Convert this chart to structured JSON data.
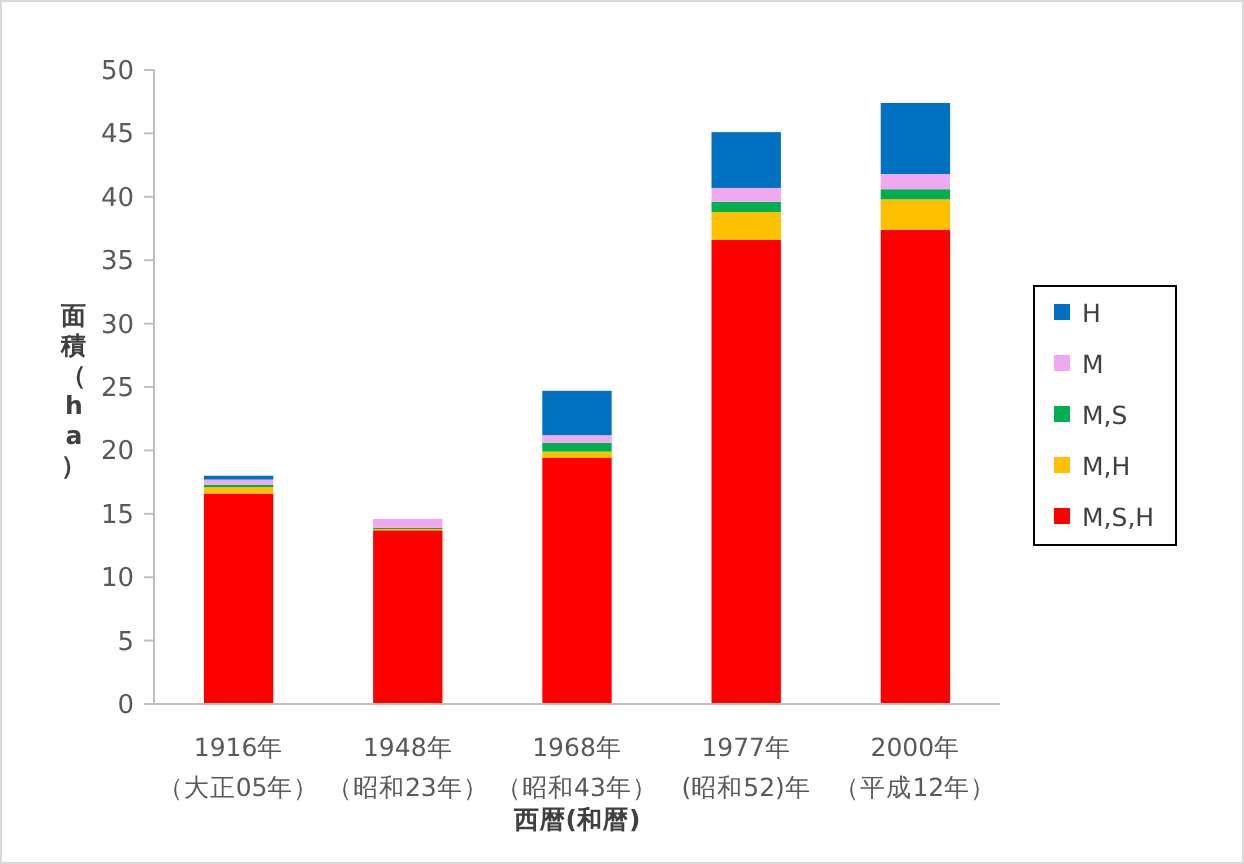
{
  "chart_data": {
    "type": "bar",
    "stacked": true,
    "xlabel": "西暦(和暦)",
    "ylabel": "面積（ha）",
    "categories": [
      "1916年（大正05年）",
      "1948年（昭和23年）",
      "1968年（昭和43年）",
      "1977年(昭和52)年",
      "2000年（平成12年）"
    ],
    "series": [
      {
        "name": "M,S,H",
        "color": "#ff0000",
        "values": [
          16.6,
          13.7,
          19.4,
          36.6,
          37.4
        ]
      },
      {
        "name": "M,H",
        "color": "#ffc000",
        "values": [
          0.5,
          0.1,
          0.5,
          2.2,
          2.4
        ]
      },
      {
        "name": "M,S",
        "color": "#00b050",
        "values": [
          0.2,
          0.1,
          0.7,
          0.8,
          0.8
        ]
      },
      {
        "name": "M",
        "color": "#f0a8f0",
        "values": [
          0.4,
          0.7,
          0.6,
          1.1,
          1.2
        ]
      },
      {
        "name": "H",
        "color": "#0070c0",
        "values": [
          0.3,
          0,
          3.5,
          4.4,
          5.6
        ]
      }
    ],
    "ylim": [
      0,
      50
    ],
    "yticks": [
      0,
      5,
      10,
      15,
      20,
      25,
      30,
      35,
      40,
      45,
      50
    ],
    "legend": "right"
  }
}
